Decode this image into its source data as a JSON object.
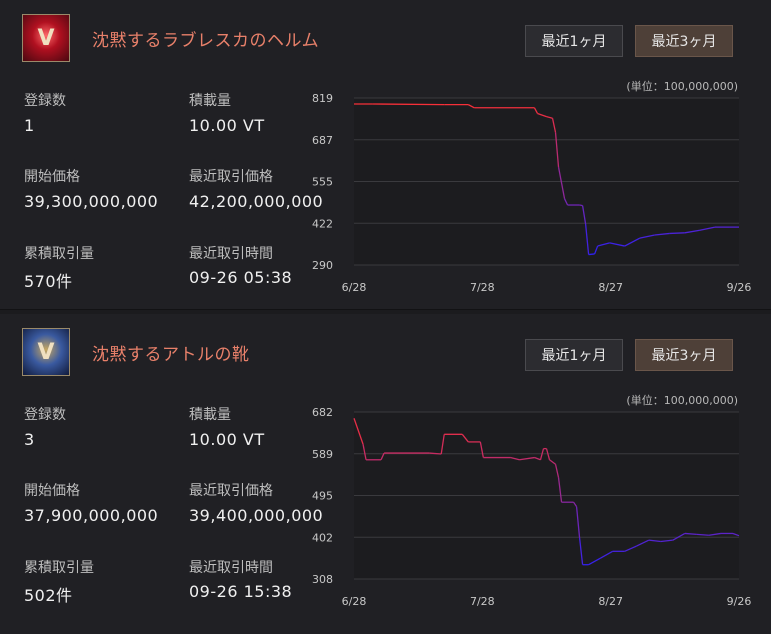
{
  "items": [
    {
      "title": "沈黙するラブレスカのヘルム",
      "icon": "helmet-icon",
      "icon_glyph": "V",
      "buttons": {
        "one_month": "最近1ヶ月",
        "three_months": "最近3ヶ月"
      },
      "unit": "(単位：100,000,000)",
      "stats": {
        "listed_label": "登録数",
        "listed_value": "1",
        "capacity_label": "積載量",
        "capacity_value": "10.00 VT",
        "base_price_label": "開始価格",
        "base_price_value": "39,300,000,000",
        "last_price_label": "最近取引価格",
        "last_price_value": "42,200,000,000",
        "total_trades_label": "累積取引量",
        "total_trades_value": "570件",
        "last_time_label": "最近取引時間",
        "last_time_value": "09-26 05:38"
      },
      "chart_data": {
        "type": "line",
        "y_ticks": [
          "819",
          "687",
          "555",
          "422",
          "290"
        ],
        "ylim": [
          290,
          819
        ],
        "x_ticks": [
          "6/28",
          "7/28",
          "8/27",
          "9/26"
        ],
        "colors": {
          "high": "#ff3030",
          "low": "#2020ff"
        },
        "grid": true,
        "series": [
          {
            "values": [
              [
                0,
                800
              ],
              [
                6,
                800
              ],
              [
                30,
                798
              ],
              [
                38,
                798
              ],
              [
                40,
                788
              ],
              [
                60,
                788
              ],
              [
                61,
                770
              ],
              [
                64,
                760
              ],
              [
                66,
                755
              ],
              [
                67,
                710
              ],
              [
                68,
                600
              ],
              [
                70,
                500
              ],
              [
                71,
                480
              ],
              [
                75,
                480
              ],
              [
                76,
                478
              ],
              [
                77,
                420
              ],
              [
                78,
                323
              ],
              [
                80,
                325
              ],
              [
                81,
                350
              ],
              [
                85,
                360
              ],
              [
                90,
                350
              ],
              [
                95,
                375
              ],
              [
                100,
                385
              ],
              [
                105,
                390
              ],
              [
                110,
                392
              ],
              [
                115,
                400
              ],
              [
                120,
                410
              ],
              [
                125,
                410
              ],
              [
                128,
                410
              ]
            ]
          }
        ]
      }
    },
    {
      "title": "沈黙するアトルの靴",
      "icon": "boots-icon",
      "icon_glyph": "V",
      "buttons": {
        "one_month": "最近1ヶ月",
        "three_months": "最近3ヶ月"
      },
      "unit": "(単位：100,000,000)",
      "stats": {
        "listed_label": "登録数",
        "listed_value": "3",
        "capacity_label": "積載量",
        "capacity_value": "10.00 VT",
        "base_price_label": "開始価格",
        "base_price_value": "37,900,000,000",
        "last_price_label": "最近取引価格",
        "last_price_value": "39,400,000,000",
        "total_trades_label": "累積取引量",
        "total_trades_value": "502件",
        "last_time_label": "最近取引時間",
        "last_time_value": "09-26 15:38"
      },
      "chart_data": {
        "type": "line",
        "y_ticks": [
          "682",
          "589",
          "495",
          "402",
          "308"
        ],
        "ylim": [
          308,
          682
        ],
        "x_ticks": [
          "6/28",
          "7/28",
          "8/27",
          "9/26"
        ],
        "colors": {
          "high": "#ff3030",
          "low": "#2020ff"
        },
        "grid": true,
        "series": [
          {
            "values": [
              [
                0,
                668
              ],
              [
                3,
                610
              ],
              [
                4,
                575
              ],
              [
                9,
                575
              ],
              [
                10,
                590
              ],
              [
                25,
                590
              ],
              [
                29,
                588
              ],
              [
                30,
                632
              ],
              [
                36,
                632
              ],
              [
                38,
                615
              ],
              [
                42,
                615
              ],
              [
                43,
                580
              ],
              [
                52,
                580
              ],
              [
                55,
                575
              ],
              [
                60,
                580
              ],
              [
                62,
                575
              ],
              [
                63,
                600
              ],
              [
                64,
                600
              ],
              [
                65,
                575
              ],
              [
                67,
                565
              ],
              [
                68,
                535
              ],
              [
                69,
                480
              ],
              [
                73,
                480
              ],
              [
                74,
                470
              ],
              [
                75,
                400
              ],
              [
                76,
                340
              ],
              [
                78,
                340
              ],
              [
                82,
                355
              ],
              [
                86,
                370
              ],
              [
                90,
                370
              ],
              [
                94,
                382
              ],
              [
                98,
                395
              ],
              [
                102,
                392
              ],
              [
                106,
                395
              ],
              [
                110,
                410
              ],
              [
                114,
                408
              ],
              [
                118,
                406
              ],
              [
                122,
                410
              ],
              [
                126,
                410
              ],
              [
                128,
                405
              ]
            ]
          }
        ]
      }
    }
  ]
}
